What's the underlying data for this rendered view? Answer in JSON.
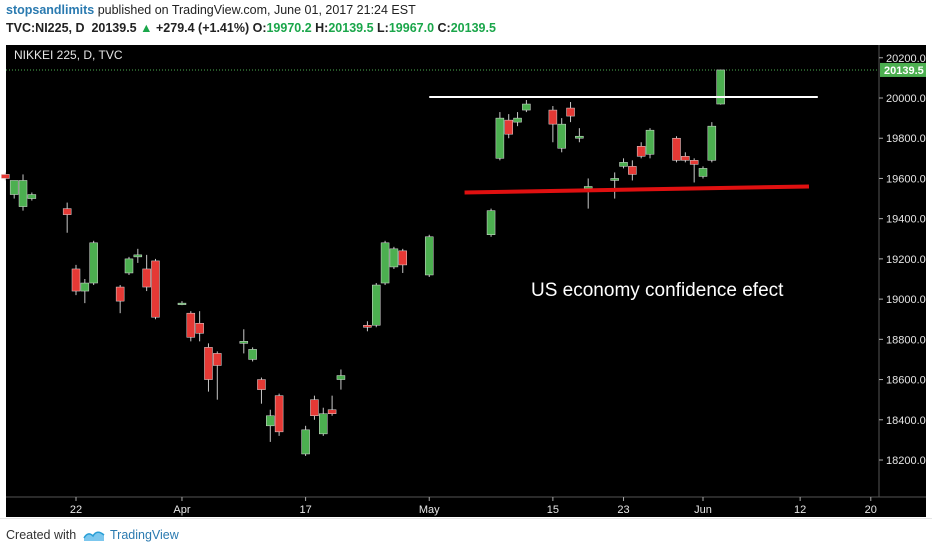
{
  "header": {
    "author": "stopsandlimits",
    "published": "published on TradingView.com, June 01, 2017 21:24 EST",
    "symbol": "TVC:NI225, D",
    "last": "20139.5",
    "change": "+279.4 (+1.41%)",
    "o_label": "O:",
    "o_value": "19970.2",
    "h_label": "H:",
    "h_value": "20139.5",
    "l_label": "L:",
    "l_value": "19967.0",
    "c_label": "C:",
    "c_value": "20139.5"
  },
  "footer": {
    "created_with": "Created with",
    "brand": "TradingView"
  },
  "chart_data": {
    "type": "candlestick",
    "title": "NIKKEI 225, D, TVC",
    "last_price_label": "20139.5",
    "annotation": "US economy confidence efect",
    "ylim": [
      18100,
      20300
    ],
    "y_ticks": [
      18200,
      18400,
      18600,
      18800,
      19000,
      19200,
      19400,
      19600,
      19800,
      20000,
      20200
    ],
    "x_ticks": [
      {
        "label": "22",
        "date": "2017-03-22"
      },
      {
        "label": "Apr",
        "date": "2017-04-03"
      },
      {
        "label": "17",
        "date": "2017-04-17"
      },
      {
        "label": "May",
        "date": "2017-05-01"
      },
      {
        "label": "15",
        "date": "2017-05-15"
      },
      {
        "label": "23",
        "date": "2017-05-23"
      },
      {
        "label": "Jun",
        "date": "2017-06-01"
      },
      {
        "label": "12",
        "date": "2017-06-12"
      },
      {
        "label": "20",
        "date": "2017-06-20"
      }
    ],
    "up_color": "#4caf50",
    "down_color": "#e53935",
    "candles": [
      {
        "date": "2017-03-14",
        "o": 19620,
        "h": 19630,
        "l": 19590,
        "c": 19600
      },
      {
        "date": "2017-03-15",
        "o": 19520,
        "h": 19580,
        "l": 19500,
        "c": 19590
      },
      {
        "date": "2017-03-16",
        "o": 19460,
        "h": 19620,
        "l": 19440,
        "c": 19590
      },
      {
        "date": "2017-03-17",
        "o": 19500,
        "h": 19530,
        "l": 19490,
        "c": 19520
      },
      {
        "date": "2017-03-21",
        "o": 19450,
        "h": 19480,
        "l": 19330,
        "c": 19420
      },
      {
        "date": "2017-03-22",
        "o": 19150,
        "h": 19170,
        "l": 19020,
        "c": 19040
      },
      {
        "date": "2017-03-23",
        "o": 19040,
        "h": 19100,
        "l": 18980,
        "c": 19080
      },
      {
        "date": "2017-03-24",
        "o": 19080,
        "h": 19290,
        "l": 19070,
        "c": 19280
      },
      {
        "date": "2017-03-27",
        "o": 19060,
        "h": 19070,
        "l": 18930,
        "c": 18990
      },
      {
        "date": "2017-03-28",
        "o": 19130,
        "h": 19210,
        "l": 19120,
        "c": 19200
      },
      {
        "date": "2017-03-29",
        "o": 19210,
        "h": 19250,
        "l": 19180,
        "c": 19220
      },
      {
        "date": "2017-03-30",
        "o": 19150,
        "h": 19220,
        "l": 19040,
        "c": 19060
      },
      {
        "date": "2017-03-31",
        "o": 19190,
        "h": 19200,
        "l": 18900,
        "c": 18910
      },
      {
        "date": "2017-04-03",
        "o": 18980,
        "h": 18990,
        "l": 18970,
        "c": 18980
      },
      {
        "date": "2017-04-04",
        "o": 18930,
        "h": 18940,
        "l": 18790,
        "c": 18810
      },
      {
        "date": "2017-04-05",
        "o": 18880,
        "h": 18940,
        "l": 18790,
        "c": 18830
      },
      {
        "date": "2017-04-06",
        "o": 18760,
        "h": 18780,
        "l": 18540,
        "c": 18600
      },
      {
        "date": "2017-04-07",
        "o": 18730,
        "h": 18740,
        "l": 18500,
        "c": 18670
      },
      {
        "date": "2017-04-10",
        "o": 18780,
        "h": 18850,
        "l": 18730,
        "c": 18790
      },
      {
        "date": "2017-04-11",
        "o": 18700,
        "h": 18760,
        "l": 18690,
        "c": 18750
      },
      {
        "date": "2017-04-12",
        "o": 18600,
        "h": 18610,
        "l": 18480,
        "c": 18550
      },
      {
        "date": "2017-04-13",
        "o": 18370,
        "h": 18450,
        "l": 18290,
        "c": 18420
      },
      {
        "date": "2017-04-14",
        "o": 18520,
        "h": 18530,
        "l": 18320,
        "c": 18340
      },
      {
        "date": "2017-04-17",
        "o": 18230,
        "h": 18370,
        "l": 18220,
        "c": 18350
      },
      {
        "date": "2017-04-18",
        "o": 18500,
        "h": 18520,
        "l": 18400,
        "c": 18420
      },
      {
        "date": "2017-04-19",
        "o": 18330,
        "h": 18460,
        "l": 18320,
        "c": 18430
      },
      {
        "date": "2017-04-20",
        "o": 18450,
        "h": 18520,
        "l": 18420,
        "c": 18430
      },
      {
        "date": "2017-04-21",
        "o": 18600,
        "h": 18650,
        "l": 18550,
        "c": 18620
      },
      {
        "date": "2017-04-24",
        "o": 18870,
        "h": 18890,
        "l": 18840,
        "c": 18860
      },
      {
        "date": "2017-04-25",
        "o": 18870,
        "h": 19080,
        "l": 18860,
        "c": 19070
      },
      {
        "date": "2017-04-26",
        "o": 19080,
        "h": 19290,
        "l": 19070,
        "c": 19280
      },
      {
        "date": "2017-04-27",
        "o": 19160,
        "h": 19260,
        "l": 19150,
        "c": 19250
      },
      {
        "date": "2017-04-28",
        "o": 19240,
        "h": 19250,
        "l": 19130,
        "c": 19170
      },
      {
        "date": "2017-05-01",
        "o": 19120,
        "h": 19320,
        "l": 19110,
        "c": 19310
      },
      {
        "date": "2017-05-08",
        "o": 19320,
        "h": 19450,
        "l": 19310,
        "c": 19440
      },
      {
        "date": "2017-05-09",
        "o": 19700,
        "h": 19930,
        "l": 19690,
        "c": 19900
      },
      {
        "date": "2017-05-10",
        "o": 19890,
        "h": 19920,
        "l": 19800,
        "c": 19820
      },
      {
        "date": "2017-05-11",
        "o": 19880,
        "h": 19930,
        "l": 19860,
        "c": 19900
      },
      {
        "date": "2017-05-12",
        "o": 19940,
        "h": 19990,
        "l": 19930,
        "c": 19970
      },
      {
        "date": "2017-05-15",
        "o": 19940,
        "h": 19960,
        "l": 19780,
        "c": 19870
      },
      {
        "date": "2017-05-16",
        "o": 19750,
        "h": 19900,
        "l": 19730,
        "c": 19870
      },
      {
        "date": "2017-05-17",
        "o": 19950,
        "h": 19980,
        "l": 19880,
        "c": 19910
      },
      {
        "date": "2017-05-18",
        "o": 19800,
        "h": 19850,
        "l": 19780,
        "c": 19810
      },
      {
        "date": "2017-05-19",
        "o": 19550,
        "h": 19600,
        "l": 19450,
        "c": 19560
      },
      {
        "date": "2017-05-22",
        "o": 19590,
        "h": 19630,
        "l": 19500,
        "c": 19600
      },
      {
        "date": "2017-05-23",
        "o": 19660,
        "h": 19700,
        "l": 19650,
        "c": 19680
      },
      {
        "date": "2017-05-24",
        "o": 19660,
        "h": 19690,
        "l": 19590,
        "c": 19620
      },
      {
        "date": "2017-05-25",
        "o": 19760,
        "h": 19780,
        "l": 19700,
        "c": 19710
      },
      {
        "date": "2017-05-26",
        "o": 19720,
        "h": 19850,
        "l": 19700,
        "c": 19840
      },
      {
        "date": "2017-05-29",
        "o": 19800,
        "h": 19810,
        "l": 19680,
        "c": 19690
      },
      {
        "date": "2017-05-30",
        "o": 19710,
        "h": 19730,
        "l": 19680,
        "c": 19690
      },
      {
        "date": "2017-05-31",
        "o": 19690,
        "h": 19700,
        "l": 19580,
        "c": 19670
      },
      {
        "date": "2017-06-01",
        "o": 19610,
        "h": 19660,
        "l": 19600,
        "c": 19650
      },
      {
        "date": "2017-06-02",
        "o": 19690,
        "h": 19880,
        "l": 19680,
        "c": 19860
      },
      {
        "date": "2017-06-03",
        "o": 19970,
        "h": 20140,
        "l": 19967,
        "c": 20139.5
      }
    ],
    "lines": [
      {
        "name": "resistance",
        "color": "#ffffff",
        "from": {
          "date": "2017-05-01",
          "value": 20005
        },
        "to": {
          "date": "2017-06-14",
          "value": 20005
        }
      },
      {
        "name": "support",
        "color": "#e01010",
        "from": {
          "date": "2017-05-05",
          "value": 19530
        },
        "to": {
          "date": "2017-06-13",
          "value": 19560
        }
      }
    ]
  }
}
